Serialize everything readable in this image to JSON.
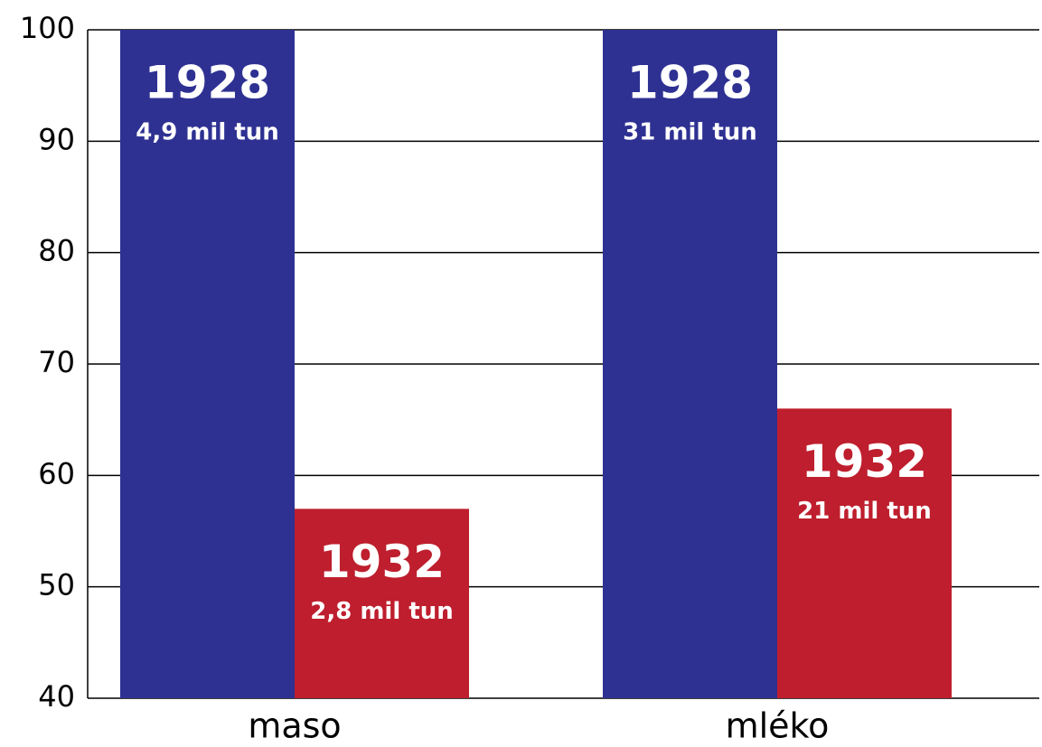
{
  "chart_data": {
    "type": "bar",
    "categories": [
      "maso",
      "mléko"
    ],
    "series": [
      {
        "name": "1928",
        "color": "#2e3192",
        "values": [
          100,
          100
        ],
        "amounts": [
          "4,9 mil tun",
          "31 mil tun"
        ]
      },
      {
        "name": "1932",
        "color": "#be1e2d",
        "values": [
          57,
          66
        ],
        "amounts": [
          "2,8 mil tun",
          "21 mil tun"
        ]
      }
    ],
    "ylim": [
      40,
      100
    ],
    "yticks": [
      40,
      50,
      60,
      70,
      80,
      90,
      100
    ],
    "grid": true
  }
}
